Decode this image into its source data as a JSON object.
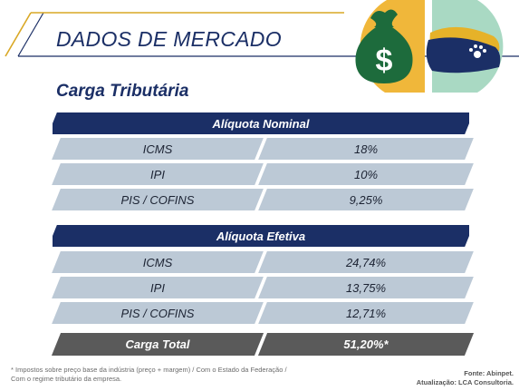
{
  "title": "DADOS DE MERCADO",
  "subtitle": "Carga Tributária",
  "nominal": {
    "header": "Alíquota Nominal",
    "rows": [
      {
        "label": "ICMS",
        "value": "18%"
      },
      {
        "label": "IPI",
        "value": "10%"
      },
      {
        "label": "PIS / COFINS",
        "value": "9,25%"
      }
    ]
  },
  "efetiva": {
    "header": "Alíquota Efetiva",
    "rows": [
      {
        "label": "ICMS",
        "value": "24,74%"
      },
      {
        "label": "IPI",
        "value": "13,75%"
      },
      {
        "label": "PIS / COFINS",
        "value": "12,71%"
      }
    ]
  },
  "total": {
    "label": "Carga Total",
    "value": "51,20%*"
  },
  "footnote": {
    "line1": "* Impostos sobre preço base da indústria (preço + margem) / Com o Estado da Federação /",
    "line2": "Com o regime tributário da empresa."
  },
  "source": {
    "line1": "Fonte: Abinpet.",
    "line2": "Atualização: LCA Consultoria."
  },
  "colors": {
    "navy": "#1b2f66",
    "cell": "#bcc9d6",
    "total": "#5a5a5a",
    "gold": "#e6b229"
  },
  "icons": {
    "money_bag": "money-bag-icon",
    "pet_food_bag": "pet-food-bag-icon"
  }
}
